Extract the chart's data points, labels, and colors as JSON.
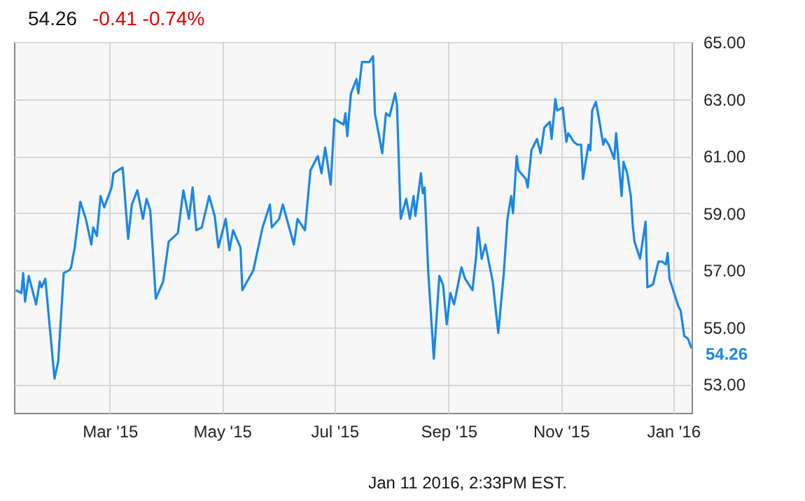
{
  "chart_data": {
    "type": "line",
    "title": "54.26",
    "subtitle": "-0.41  -0.74%",
    "annotations": [
      "Jan 11 2016, 2:33PM EST."
    ],
    "series": [
      {
        "color": "#1a87e6",
        "x": [
          "2015-01-09",
          "2015-01-12",
          "2015-01-13",
          "2015-01-14",
          "2015-01-16",
          "2015-01-20",
          "2015-01-22",
          "2015-01-23",
          "2015-01-25",
          "2015-01-28",
          "2015-01-30",
          "2015-02-01",
          "2015-02-04",
          "2015-02-07",
          "2015-02-08",
          "2015-02-10",
          "2015-02-13",
          "2015-02-16",
          "2015-02-19",
          "2015-02-20",
          "2015-02-22",
          "2015-02-24",
          "2015-02-26",
          "2015-03-02",
          "2015-03-03",
          "2015-03-08",
          "2015-03-11",
          "2015-03-13",
          "2015-03-16",
          "2015-03-19",
          "2015-03-21",
          "2015-03-23",
          "2015-03-26",
          "2015-03-30",
          "2015-04-02",
          "2015-04-07",
          "2015-04-10",
          "2015-04-13",
          "2015-04-15",
          "2015-04-17",
          "2015-04-20",
          "2015-04-24",
          "2015-04-27",
          "2015-04-29",
          "2015-05-03",
          "2015-05-05",
          "2015-05-07",
          "2015-05-11",
          "2015-05-12",
          "2015-05-18",
          "2015-05-20",
          "2015-05-23",
          "2015-05-27",
          "2015-05-28",
          "2015-06-01",
          "2015-06-03",
          "2015-06-09",
          "2015-06-11",
          "2015-06-15",
          "2015-06-18",
          "2015-06-22",
          "2015-06-24",
          "2015-06-26",
          "2015-06-29",
          "2015-07-01",
          "2015-07-06",
          "2015-07-07",
          "2015-07-08",
          "2015-07-10",
          "2015-07-13",
          "2015-07-14",
          "2015-07-16",
          "2015-07-20",
          "2015-07-22",
          "2015-07-23",
          "2015-07-27",
          "2015-07-29",
          "2015-07-31",
          "2015-08-03",
          "2015-08-04",
          "2015-08-06",
          "2015-08-09",
          "2015-08-11",
          "2015-08-13",
          "2015-08-14",
          "2015-08-17",
          "2015-08-18",
          "2015-08-19",
          "2015-08-21",
          "2015-08-24",
          "2015-08-27",
          "2015-08-29",
          "2015-08-31",
          "2015-09-02",
          "2015-09-04",
          "2015-09-08",
          "2015-09-10",
          "2015-09-14",
          "2015-09-16",
          "2015-09-17",
          "2015-09-19",
          "2015-09-21",
          "2015-09-25",
          "2015-09-28",
          "2015-10-01",
          "2015-10-03",
          "2015-10-05",
          "2015-10-06",
          "2015-10-08",
          "2015-10-09",
          "2015-10-13",
          "2015-10-14",
          "2015-10-16",
          "2015-10-19",
          "2015-10-21",
          "2015-10-23",
          "2015-10-26",
          "2015-10-27",
          "2015-10-29",
          "2015-10-30",
          "2015-11-02",
          "2015-11-04",
          "2015-11-05",
          "2015-11-08",
          "2015-11-10",
          "2015-11-12",
          "2015-11-13",
          "2015-11-16",
          "2015-11-17",
          "2015-11-18",
          "2015-11-20",
          "2015-11-22",
          "2015-11-24",
          "2015-11-25",
          "2015-11-27",
          "2015-11-30",
          "2015-12-01",
          "2015-12-04",
          "2015-12-05",
          "2015-12-07",
          "2015-12-09",
          "2015-12-10",
          "2015-12-11",
          "2015-12-14",
          "2015-12-17",
          "2015-12-18",
          "2015-12-21",
          "2015-12-24",
          "2015-12-26",
          "2015-12-28",
          "2015-12-29",
          "2015-12-30",
          "2016-01-04",
          "2016-01-05",
          "2016-01-07",
          "2016-01-09",
          "2016-01-11"
        ],
        "values": [
          56.3,
          56.2,
          56.9,
          55.9,
          56.8,
          55.8,
          56.6,
          56.4,
          56.7,
          54.6,
          53.2,
          53.8,
          56.9,
          57.0,
          57.1,
          57.8,
          59.4,
          58.8,
          57.9,
          58.5,
          58.2,
          59.6,
          59.2,
          59.9,
          60.4,
          60.6,
          58.1,
          59.3,
          59.8,
          58.8,
          59.5,
          59.1,
          56.0,
          56.6,
          58.0,
          58.3,
          59.8,
          58.8,
          59.9,
          58.4,
          58.5,
          59.6,
          58.9,
          57.8,
          58.8,
          57.7,
          58.4,
          57.8,
          56.3,
          57.0,
          57.6,
          58.5,
          59.3,
          58.5,
          58.8,
          59.3,
          57.9,
          58.8,
          58.4,
          60.5,
          61.0,
          60.4,
          61.3,
          60.0,
          62.3,
          62.1,
          62.5,
          61.7,
          63.2,
          63.7,
          63.2,
          64.3,
          64.3,
          64.5,
          62.5,
          61.1,
          62.5,
          62.4,
          63.2,
          62.8,
          58.8,
          59.5,
          58.8,
          59.6,
          58.9,
          60.4,
          59.7,
          59.9,
          56.9,
          53.9,
          56.8,
          56.5,
          55.1,
          56.2,
          55.8,
          57.1,
          56.7,
          56.3,
          57.5,
          58.5,
          57.4,
          57.9,
          56.6,
          54.8,
          56.9,
          58.8,
          59.6,
          59.0,
          61.0,
          60.5,
          60.2,
          59.9,
          61.2,
          61.6,
          61.1,
          62.0,
          62.2,
          61.6,
          63.0,
          62.6,
          62.7,
          61.5,
          61.8,
          61.5,
          61.4,
          61.4,
          60.2,
          61.4,
          61.2,
          62.6,
          62.9,
          62.2,
          61.4,
          61.6,
          61.4,
          60.9,
          61.8,
          59.6,
          60.8,
          60.4,
          59.6,
          58.6,
          58.0,
          57.4,
          58.7,
          56.4,
          56.5,
          57.3,
          57.3,
          57.2,
          57.6,
          56.7,
          55.7,
          55.6,
          54.7,
          54.6,
          54.26
        ],
        "value_labels": [
          null,
          null,
          null,
          null,
          null,
          null,
          null,
          null,
          null,
          null,
          null,
          null,
          null,
          null,
          null,
          null,
          null,
          null,
          null,
          null,
          null,
          null,
          null,
          null,
          null,
          null,
          null,
          null,
          null,
          null,
          null,
          null,
          null,
          null,
          null,
          null,
          null,
          null,
          null,
          null,
          null,
          null,
          null,
          null,
          null,
          null,
          null,
          null,
          null,
          null,
          null,
          null,
          null,
          null,
          null,
          null,
          null,
          null,
          null,
          null,
          null,
          null,
          null,
          null,
          null,
          null,
          null,
          null,
          null,
          null,
          null,
          null,
          null,
          null,
          null,
          null,
          null,
          null,
          null,
          null,
          null,
          null,
          null,
          null,
          null,
          null,
          null,
          null,
          null,
          null,
          null,
          null,
          null,
          null,
          null,
          null,
          null,
          null,
          null,
          null,
          null,
          null,
          null,
          null,
          null,
          null,
          null,
          null,
          null,
          null,
          null,
          null,
          null,
          null,
          null,
          null,
          null,
          null,
          null,
          null,
          null,
          null,
          null,
          null,
          null,
          null,
          null,
          null,
          null,
          null,
          null,
          null,
          null,
          null,
          null,
          null,
          null,
          null,
          null,
          null,
          null,
          null,
          null,
          null,
          null,
          null,
          null,
          null,
          null,
          null,
          null,
          null,
          null,
          null,
          null,
          null,
          "54.26"
        ]
      }
    ],
    "xlim": [
      "2015-01-08",
      "2016-01-11"
    ],
    "xticks": [
      {
        "value": "2015-03-01",
        "label": "Mar '15"
      },
      {
        "value": "2015-05-01",
        "label": "May '15"
      },
      {
        "value": "2015-07-01",
        "label": "Jul '15"
      },
      {
        "value": "2015-09-01",
        "label": "Sep '15"
      },
      {
        "value": "2015-11-01",
        "label": "Nov '15"
      },
      {
        "value": "2016-01-01",
        "label": "Jan '16"
      }
    ],
    "ylim": [
      52,
      65
    ],
    "yticks": [
      {
        "value": 53,
        "label": "53.00"
      },
      {
        "value": 55,
        "label": "55.00"
      },
      {
        "value": 57,
        "label": "57.00"
      },
      {
        "value": 59,
        "label": "59.00"
      },
      {
        "value": 61,
        "label": "61.00"
      },
      {
        "value": 63,
        "label": "63.00"
      },
      {
        "value": 65,
        "label": "65.00"
      }
    ],
    "grid": true
  }
}
